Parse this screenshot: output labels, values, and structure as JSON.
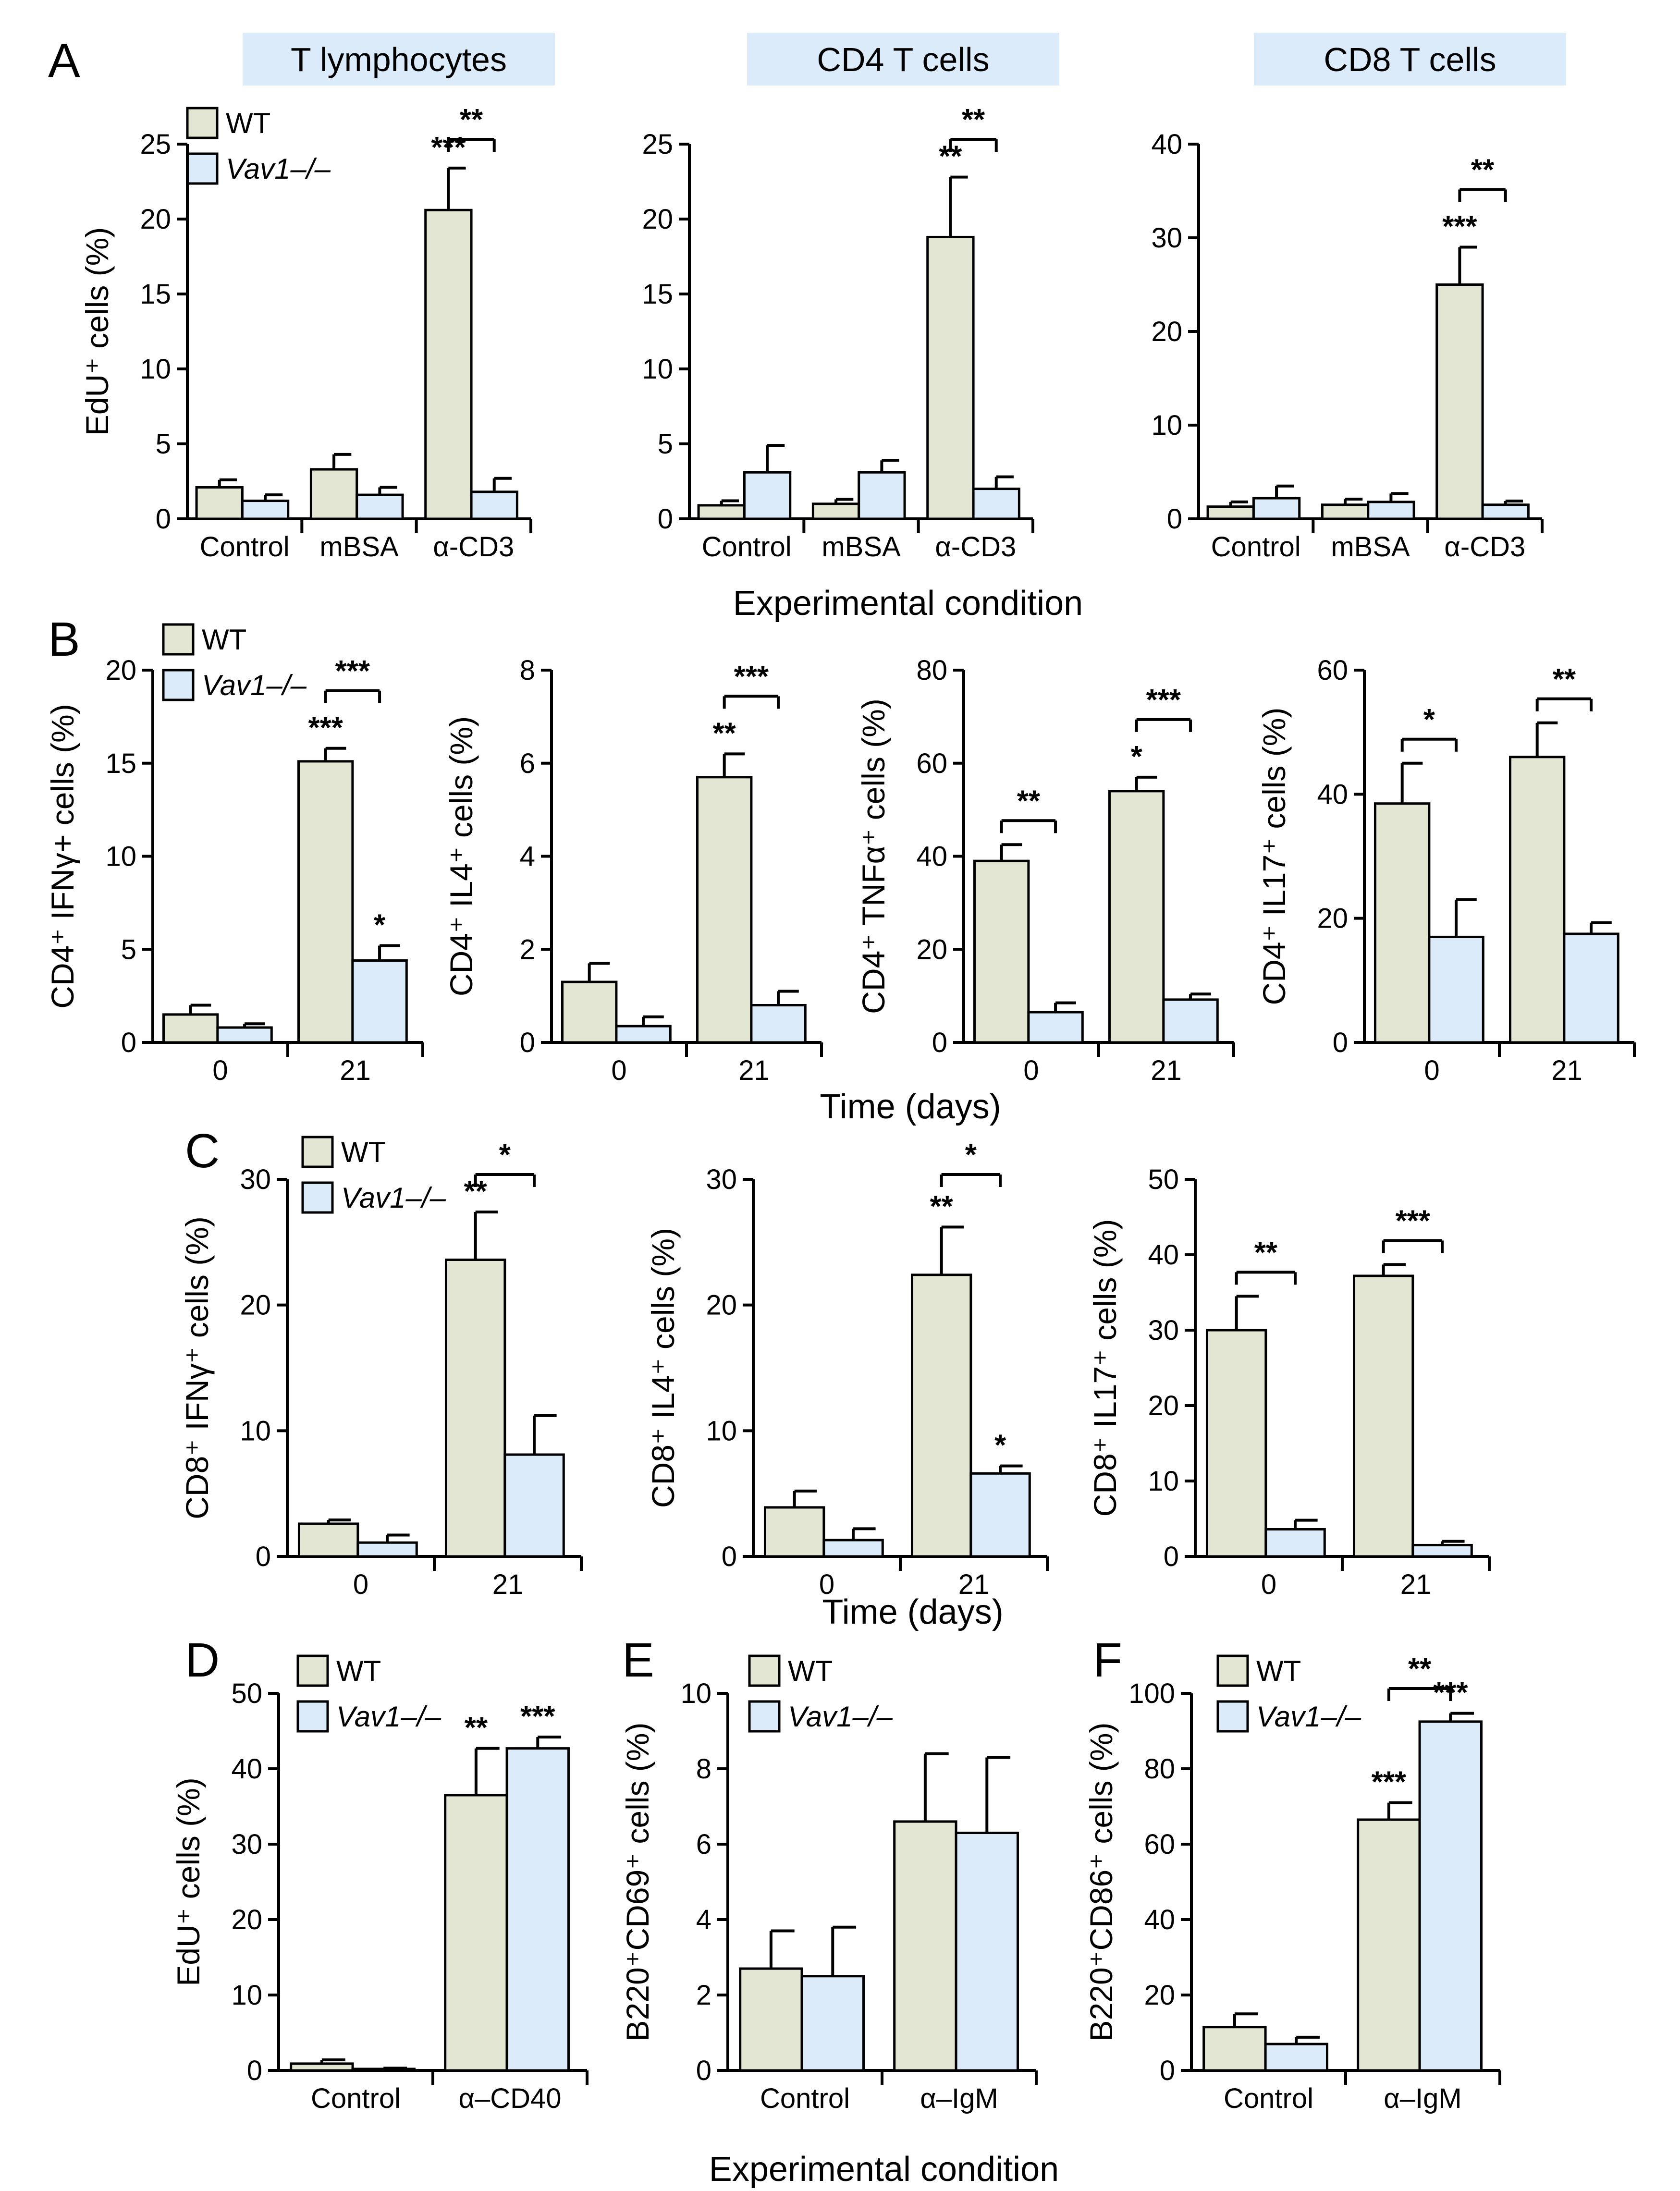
{
  "colors": {
    "wt": "#E3E6D2",
    "vav1": "#DCEBFA",
    "title_bg": "#DCEBFA",
    "axis": "#000000"
  },
  "legend": {
    "wt": "WT",
    "vav1": "Vav1–/–"
  },
  "labels": {
    "experimental_condition": "Experimental condition",
    "time_days": "Time (days)",
    "panel_titles": [
      "T lymphocytes",
      "CD4 T cells",
      "CD8 T cells"
    ]
  },
  "chart_data": [
    {
      "id": "A1",
      "panel": "A",
      "type": "bar",
      "title": "T lymphocytes",
      "ylabel": "EdU⁺ cells (%)",
      "ylim": [
        0,
        25
      ],
      "yticks": [
        0,
        5,
        10,
        15,
        20,
        25
      ],
      "categories": [
        "Control",
        "mBSA",
        "α-CD3"
      ],
      "series": [
        {
          "name": "WT",
          "values": [
            2.1,
            3.3,
            20.6
          ],
          "errors": [
            0.5,
            1.0,
            2.8
          ],
          "stars": [
            "",
            "",
            "***"
          ]
        },
        {
          "name": "Vav1–/–",
          "values": [
            1.2,
            1.6,
            1.8
          ],
          "errors": [
            0.4,
            0.5,
            0.9
          ],
          "stars": [
            "",
            "",
            ""
          ]
        }
      ],
      "brackets": [
        {
          "category": 2,
          "label": "**"
        }
      ]
    },
    {
      "id": "A2",
      "panel": "A",
      "type": "bar",
      "title": "CD4 T cells",
      "ylabel": "",
      "ylim": [
        0,
        25
      ],
      "yticks": [
        0,
        5,
        10,
        15,
        20,
        25
      ],
      "categories": [
        "Control",
        "mBSA",
        "α-CD3"
      ],
      "series": [
        {
          "name": "WT",
          "values": [
            0.9,
            1.0,
            18.8
          ],
          "errors": [
            0.3,
            0.3,
            4.0
          ],
          "stars": [
            "",
            "",
            "**"
          ]
        },
        {
          "name": "Vav1–/–",
          "values": [
            3.1,
            3.1,
            2.0
          ],
          "errors": [
            1.8,
            0.8,
            0.8
          ],
          "stars": [
            "",
            "",
            ""
          ]
        }
      ],
      "brackets": [
        {
          "category": 2,
          "label": "**"
        }
      ]
    },
    {
      "id": "A3",
      "panel": "A",
      "type": "bar",
      "title": "CD8 T cells",
      "ylabel": "",
      "ylim": [
        0,
        40
      ],
      "yticks": [
        0,
        10,
        20,
        30,
        40
      ],
      "categories": [
        "Control",
        "mBSA",
        "α-CD3"
      ],
      "series": [
        {
          "name": "WT",
          "values": [
            1.3,
            1.5,
            25.0
          ],
          "errors": [
            0.5,
            0.6,
            4.0
          ],
          "stars": [
            "",
            "",
            "***"
          ]
        },
        {
          "name": "Vav1–/–",
          "values": [
            2.2,
            1.8,
            1.5
          ],
          "errors": [
            1.3,
            0.9,
            0.4
          ],
          "stars": [
            "",
            "",
            ""
          ]
        }
      ],
      "brackets": [
        {
          "category": 2,
          "label": "**"
        }
      ]
    },
    {
      "id": "B1",
      "panel": "B",
      "type": "bar",
      "ylabel": "CD4⁺ IFNγ+ cells (%)",
      "ylim": [
        0,
        20
      ],
      "yticks": [
        0,
        5,
        10,
        15,
        20
      ],
      "categories": [
        "0",
        "21"
      ],
      "series": [
        {
          "name": "WT",
          "values": [
            1.5,
            15.1
          ],
          "errors": [
            0.5,
            0.7
          ],
          "stars": [
            "",
            "***"
          ]
        },
        {
          "name": "Vav1–/–",
          "values": [
            0.8,
            4.4
          ],
          "errors": [
            0.2,
            0.8
          ],
          "stars": [
            "",
            "*"
          ]
        }
      ],
      "brackets": [
        {
          "category": 1,
          "label": "***"
        }
      ]
    },
    {
      "id": "B2",
      "panel": "B",
      "type": "bar",
      "ylabel": "CD4⁺ IL4⁺ cells (%)",
      "ylim": [
        0,
        8
      ],
      "yticks": [
        0,
        2,
        4,
        6,
        8
      ],
      "categories": [
        "0",
        "21"
      ],
      "series": [
        {
          "name": "WT",
          "values": [
            1.3,
            5.7
          ],
          "errors": [
            0.4,
            0.5
          ],
          "stars": [
            "",
            "**"
          ]
        },
        {
          "name": "Vav1–/–",
          "values": [
            0.35,
            0.8
          ],
          "errors": [
            0.2,
            0.3
          ],
          "stars": [
            "",
            ""
          ]
        }
      ],
      "brackets": [
        {
          "category": 1,
          "label": "***"
        }
      ]
    },
    {
      "id": "B3",
      "panel": "B",
      "type": "bar",
      "ylabel": "CD4⁺ TNFα⁺ cells (%)",
      "ylim": [
        0,
        80
      ],
      "yticks": [
        0,
        20,
        40,
        60,
        80
      ],
      "categories": [
        "0",
        "21"
      ],
      "series": [
        {
          "name": "WT",
          "values": [
            39,
            54
          ],
          "errors": [
            3.5,
            3.0
          ],
          "stars": [
            "",
            "*"
          ]
        },
        {
          "name": "Vav1–/–",
          "values": [
            6.5,
            9.2
          ],
          "errors": [
            2.0,
            1.2
          ],
          "stars": [
            "",
            ""
          ]
        }
      ],
      "brackets": [
        {
          "category": 0,
          "label": "**"
        },
        {
          "category": 1,
          "label": "***"
        }
      ]
    },
    {
      "id": "B4",
      "panel": "B",
      "type": "bar",
      "ylabel": "CD4⁺ IL17⁺ cells (%)",
      "ylim": [
        0,
        60
      ],
      "yticks": [
        0,
        20,
        40,
        60
      ],
      "categories": [
        "0",
        "21"
      ],
      "series": [
        {
          "name": "WT",
          "values": [
            38.5,
            46
          ],
          "errors": [
            6.5,
            5.5
          ],
          "stars": [
            "",
            ""
          ]
        },
        {
          "name": "Vav1–/–",
          "values": [
            17,
            17.5
          ],
          "errors": [
            6.0,
            1.8
          ],
          "stars": [
            "",
            ""
          ]
        }
      ],
      "brackets": [
        {
          "category": 0,
          "label": "*"
        },
        {
          "category": 1,
          "label": "**"
        }
      ]
    },
    {
      "id": "C1",
      "panel": "C",
      "type": "bar",
      "ylabel": "CD8⁺ IFNγ⁺ cells (%)",
      "ylim": [
        0,
        30
      ],
      "yticks": [
        0,
        10,
        20,
        30
      ],
      "categories": [
        "0",
        "21"
      ],
      "series": [
        {
          "name": "WT",
          "values": [
            2.6,
            23.6
          ],
          "errors": [
            0.3,
            3.8
          ],
          "stars": [
            "",
            "**"
          ]
        },
        {
          "name": "Vav1–/–",
          "values": [
            1.1,
            8.1
          ],
          "errors": [
            0.6,
            3.1
          ],
          "stars": [
            "",
            ""
          ]
        }
      ],
      "brackets": [
        {
          "category": 1,
          "label": "*"
        }
      ]
    },
    {
      "id": "C2",
      "panel": "C",
      "type": "bar",
      "ylabel": "CD8⁺ IL4⁺ cells (%)",
      "ylim": [
        0,
        30
      ],
      "yticks": [
        0,
        10,
        20,
        30
      ],
      "categories": [
        "0",
        "21"
      ],
      "series": [
        {
          "name": "WT",
          "values": [
            3.9,
            22.4
          ],
          "errors": [
            1.3,
            3.8
          ],
          "stars": [
            "",
            "**"
          ]
        },
        {
          "name": "Vav1–/–",
          "values": [
            1.3,
            6.6
          ],
          "errors": [
            0.9,
            0.6
          ],
          "stars": [
            "",
            "*"
          ]
        }
      ],
      "brackets": [
        {
          "category": 1,
          "label": "*"
        }
      ]
    },
    {
      "id": "C3",
      "panel": "C",
      "type": "bar",
      "ylabel": "CD8⁺ IL17⁺ cells (%)",
      "ylim": [
        0,
        50
      ],
      "yticks": [
        0,
        10,
        20,
        30,
        40,
        50
      ],
      "categories": [
        "0",
        "21"
      ],
      "series": [
        {
          "name": "WT",
          "values": [
            30,
            37.2
          ],
          "errors": [
            4.5,
            1.5
          ],
          "stars": [
            "",
            ""
          ]
        },
        {
          "name": "Vav1–/–",
          "values": [
            3.6,
            1.5
          ],
          "errors": [
            1.2,
            0.5
          ],
          "stars": [
            "",
            ""
          ]
        }
      ],
      "brackets": [
        {
          "category": 0,
          "label": "**"
        },
        {
          "category": 1,
          "label": "***"
        }
      ]
    },
    {
      "id": "D",
      "panel": "D",
      "type": "bar",
      "ylabel": "EdU⁺ cells (%)",
      "ylim": [
        0,
        50
      ],
      "yticks": [
        0,
        10,
        20,
        30,
        40,
        50
      ],
      "categories": [
        "Control",
        "α–CD40"
      ],
      "series": [
        {
          "name": "WT",
          "values": [
            0.9,
            36.5
          ],
          "errors": [
            0.5,
            6.2
          ],
          "stars": [
            "",
            "**"
          ]
        },
        {
          "name": "Vav1–/–",
          "values": [
            0.2,
            42.7
          ],
          "errors": [
            0.1,
            1.5
          ],
          "stars": [
            "",
            "***"
          ]
        }
      ],
      "brackets": []
    },
    {
      "id": "E",
      "panel": "E",
      "type": "bar",
      "ylabel": "B220⁺CD69⁺ cells (%)",
      "ylim": [
        0,
        10
      ],
      "yticks": [
        0,
        2,
        4,
        6,
        8,
        10
      ],
      "categories": [
        "Control",
        "α–IgM"
      ],
      "series": [
        {
          "name": "WT",
          "values": [
            2.7,
            6.6
          ],
          "errors": [
            1.0,
            1.8
          ],
          "stars": [
            "",
            ""
          ]
        },
        {
          "name": "Vav1–/–",
          "values": [
            2.5,
            6.3
          ],
          "errors": [
            1.3,
            2.0
          ],
          "stars": [
            "",
            ""
          ]
        }
      ],
      "brackets": []
    },
    {
      "id": "F",
      "panel": "F",
      "type": "bar",
      "ylabel": "B220⁺CD86⁺ cells (%)",
      "ylim": [
        0,
        100
      ],
      "yticks": [
        0,
        20,
        40,
        60,
        80,
        100
      ],
      "categories": [
        "Control",
        "α–IgM"
      ],
      "series": [
        {
          "name": "WT",
          "values": [
            11.5,
            66.5
          ],
          "errors": [
            3.5,
            4.5
          ],
          "stars": [
            "",
            "***"
          ]
        },
        {
          "name": "Vav1–/–",
          "values": [
            7.0,
            92.5
          ],
          "errors": [
            1.8,
            2.2
          ],
          "stars": [
            "",
            "***"
          ]
        }
      ],
      "brackets": [
        {
          "category": 1,
          "label": "**",
          "between_categories": false
        }
      ]
    }
  ]
}
